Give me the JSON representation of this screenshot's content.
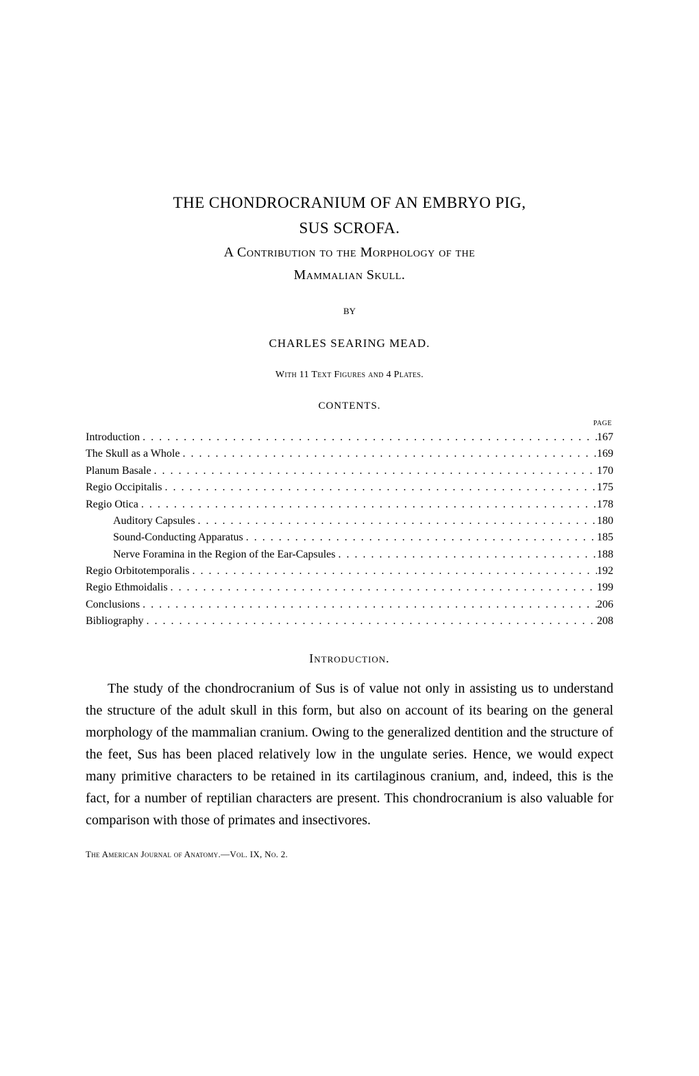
{
  "title_line1": "THE CHONDROCRANIUM OF AN EMBRYO PIG,",
  "title_line2": "SUS SCROFA.",
  "subtitle_line1": "A Contribution to the Morphology of the",
  "subtitle_line2": "Mammalian Skull.",
  "by_label": "BY",
  "author": "CHARLES SEARING MEAD.",
  "figures_note": "With 11 Text Figures and 4 Plates.",
  "contents_header": "CONTENTS.",
  "page_label": "PAGE",
  "toc": [
    {
      "label": "Introduction",
      "page": "167",
      "indent": 0
    },
    {
      "label": "The Skull as a Whole",
      "page": "169",
      "indent": 0
    },
    {
      "label": "Planum Basale",
      "page": "170",
      "indent": 0
    },
    {
      "label": "Regio Occipitalis",
      "page": "175",
      "indent": 0
    },
    {
      "label": "Regio Otica",
      "page": "178",
      "indent": 0
    },
    {
      "label": "Auditory Capsules",
      "page": "180",
      "indent": 1
    },
    {
      "label": "Sound-Conducting Apparatus",
      "page": "185",
      "indent": 1
    },
    {
      "label": "Nerve Foramina in the Region of the Ear-Capsules",
      "page": "188",
      "indent": 1
    },
    {
      "label": "Regio Orbitotemporalis",
      "page": "192",
      "indent": 0
    },
    {
      "label": "Regio Ethmoidalis",
      "page": "199",
      "indent": 0
    },
    {
      "label": "Conclusions",
      "page": "206",
      "indent": 0
    },
    {
      "label": "Bibliography",
      "page": "208",
      "indent": 0
    }
  ],
  "section_heading": "Introduction.",
  "body_paragraph": "The study of the chondrocranium of Sus is of value not only in assisting us to understand the structure of the adult skull in this form, but also on account of its bearing on the general morphology of the mammalian cranium. Owing to the generalized dentition and the structure of the feet, Sus has been placed relatively low in the ungulate series. Hence, we would expect many primitive characters to be retained in its cartilaginous cranium, and, indeed, this is the fact, for a number of reptilian characters are present. This chondrocranium is also valuable for comparison with those of primates and insectivores.",
  "footer": "The American Journal of Anatomy.—Vol. IX, No. 2.",
  "colors": {
    "background": "#ffffff",
    "text": "#000000"
  },
  "typography": {
    "body_font": "Times New Roman",
    "title_size_pt": 23,
    "subtitle_size_pt": 20,
    "body_size_pt": 20,
    "toc_size_pt": 16,
    "author_size_pt": 17,
    "footer_size_pt": 13
  }
}
